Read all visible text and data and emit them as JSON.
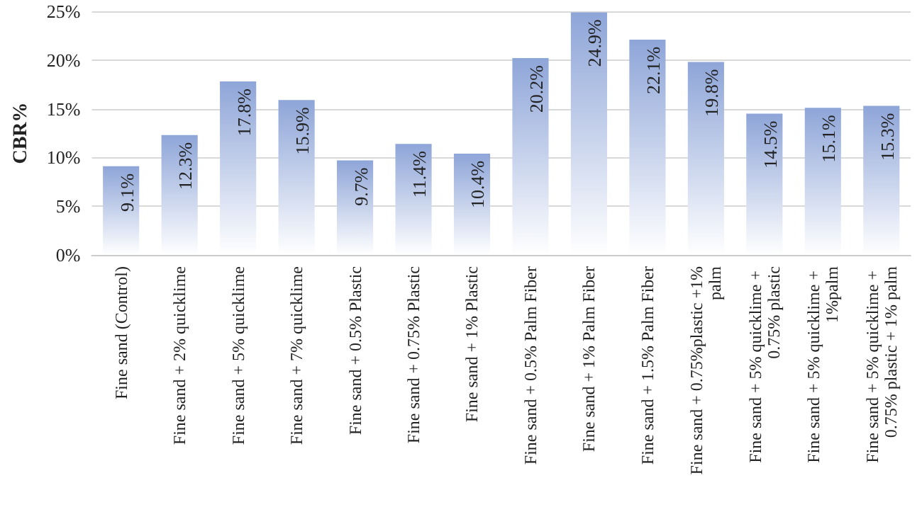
{
  "chart_data": {
    "type": "bar",
    "ylabel": "CBR%",
    "categories": [
      "Fine sand (Control)",
      "Fine sand + 2% quicklime",
      "Fine sand + 5% quicklime",
      "Fine sand + 7% quicklime",
      "Fine sand + 0.5% Plastic",
      "Fine sand + 0.75% Plastic",
      "Fine sand + 1% Plastic",
      "Fine sand + 0.5% Palm Fiber",
      "Fine sand + 1% Palm Fiber",
      "Fine sand + 1.5% Palm Fiber",
      "Fine sand + 0.75%plastic +1% palm",
      "Fine sand + 5% quicklime + 0.75% plastic",
      "Fine sand + 5% quicklime + 1%palm",
      "Fine sand + 5% quicklime + 0.75% plastic + 1% palm"
    ],
    "values": [
      9.1,
      12.3,
      17.8,
      15.9,
      9.7,
      11.4,
      10.4,
      20.2,
      24.9,
      22.1,
      19.8,
      14.5,
      15.1,
      15.3
    ],
    "value_labels": [
      "9.1%",
      "12.3%",
      "17.8%",
      "15.9%",
      "9.7%",
      "11.4%",
      "10.4%",
      "20.2%",
      "24.9%",
      "22.1%",
      "19.8%",
      "14.5%",
      "15.1%",
      "15.3%"
    ],
    "color": "#8ea5d8",
    "ylim": [
      0,
      25
    ],
    "yticks": [
      {
        "value": 0,
        "label": "0%"
      },
      {
        "value": 5,
        "label": "5%"
      },
      {
        "value": 10,
        "label": "10%"
      },
      {
        "value": 15,
        "label": "15%"
      },
      {
        "value": 20,
        "label": "20%"
      },
      {
        "value": 25,
        "label": "25%"
      }
    ],
    "grid": "y"
  }
}
